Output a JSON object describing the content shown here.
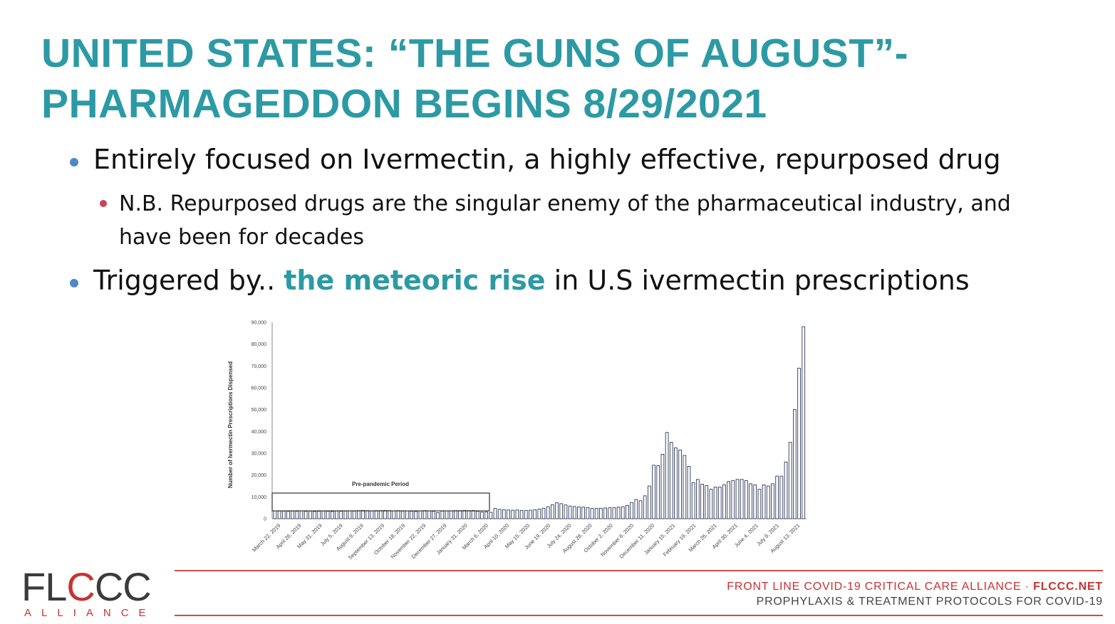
{
  "slide": {
    "title_line1": "UNITED STATES: “THE GUNS OF AUGUST”-",
    "title_line2": "PHARMAGEDDON BEGINS 8/29/2021",
    "bullet1": "Entirely focused on Ivermectin, a highly effective, repurposed drug",
    "sub_bullet": "N.B. Repurposed drugs are the singular enemy of the pharmaceutical industry, and have been for decades",
    "bullet2_prefix": "Triggered by..",
    "bullet2_highlight": "the meteoric rise",
    "bullet2_suffix": "in U.S ivermectin prescriptions"
  },
  "chart_data": {
    "type": "bar",
    "ylabel": "Number of Ivermectin Prescriptions Dispensed",
    "ylim": [
      0,
      90000
    ],
    "yticks": [
      "0",
      "10,000",
      "20,000",
      "30,000",
      "40,000",
      "50,000",
      "60,000",
      "70,000",
      "80,000",
      "90,000"
    ],
    "x_tick_labels": [
      "March 22, 2019",
      "April 26, 2019",
      "May 31, 2019",
      "July 5, 2019",
      "August 9, 2019",
      "September 13, 2019",
      "October 18, 2019",
      "November 22, 2019",
      "December 27, 2019",
      "January 31, 2020",
      "March 6, 2020",
      "April 10, 2020",
      "May 15, 2020",
      "June 19, 2020",
      "July 24, 2020",
      "August 28, 2020",
      "October 2, 2020",
      "November 6, 2020",
      "December 11, 2020",
      "January 15, 2021",
      "February 19, 2021",
      "March 26, 2021",
      "April 30, 2021",
      "June 4, 2021",
      "July 9, 2021",
      "August 13, 2021"
    ],
    "annotation": "Pre-pandemic Period",
    "values": [
      3600,
      3500,
      3500,
      3400,
      3500,
      3400,
      3600,
      3400,
      3500,
      3300,
      3400,
      3500,
      3400,
      3300,
      3500,
      3400,
      3500,
      3600,
      3500,
      3700,
      3800,
      3700,
      3600,
      3700,
      3700,
      3800,
      3700,
      3600,
      3700,
      3500,
      3600,
      3400,
      3300,
      3600,
      3700,
      3600,
      3400,
      2800,
      3500,
      3600,
      3600,
      3700,
      3700,
      3800,
      3700,
      3800,
      3400,
      3000,
      3100,
      2900,
      4700,
      4300,
      4100,
      4000,
      3900,
      4000,
      3800,
      3800,
      3900,
      4100,
      4400,
      4800,
      5500,
      6400,
      7300,
      6900,
      6300,
      5800,
      5600,
      5400,
      5300,
      5100,
      4700,
      4700,
      4800,
      4900,
      5000,
      5100,
      5300,
      5500,
      6100,
      7400,
      8800,
      8200,
      10500,
      15000,
      24500,
      24300,
      29500,
      39500,
      35000,
      32500,
      31500,
      29000,
      24000,
      16500,
      18000,
      15800,
      15200,
      13500,
      14500,
      14500,
      15500,
      17000,
      17500,
      18000,
      18000,
      17500,
      16000,
      15500,
      13500,
      15500,
      15000,
      16000,
      19500,
      19500,
      26000,
      35000,
      50000,
      69000,
      88000
    ]
  },
  "footer": {
    "logo_text_a": "FL",
    "logo_text_b": "C",
    "logo_text_c": "CC",
    "logo_sub": "ALLIANCE",
    "line1_a": "FRONT LINE COVID-19 CRITICAL CARE ALLIANCE ·",
    "line1_b": "FLCCC.NET",
    "line2": "PROPHYLAXIS & TREATMENT PROTOCOLS FOR COVID-19"
  },
  "colors": {
    "title": "#2c9aa4",
    "bullet1_dot": "#4f88c6",
    "bullet2_dot": "#c8445a",
    "brand_red": "#c93131"
  }
}
